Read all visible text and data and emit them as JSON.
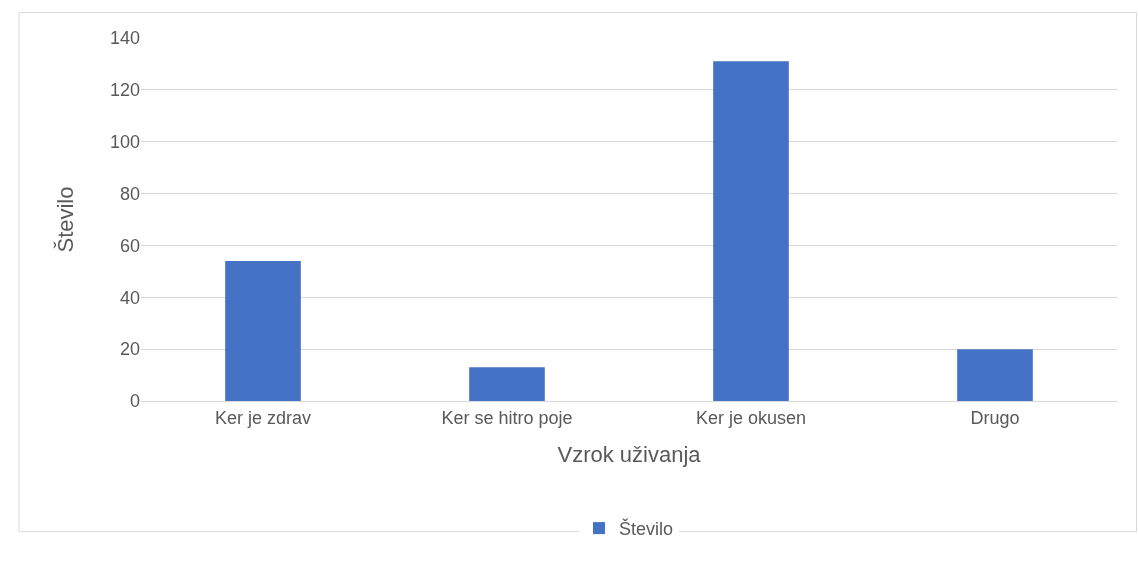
{
  "chart_data": {
    "type": "bar",
    "xlabel": "Vzrok uživanja",
    "ylabel": "Število",
    "categories": [
      "Ker je zdrav",
      "Ker se hitro poje",
      "Ker je okusen",
      "Drugo"
    ],
    "series": [
      {
        "name": "Število",
        "color": "#4472c4",
        "values": [
          54,
          13,
          131,
          20
        ]
      }
    ],
    "ylim": [
      0,
      140
    ],
    "yticks": [
      0,
      20,
      40,
      60,
      80,
      100,
      120,
      140
    ],
    "grid": "y",
    "legend": "bottom"
  }
}
